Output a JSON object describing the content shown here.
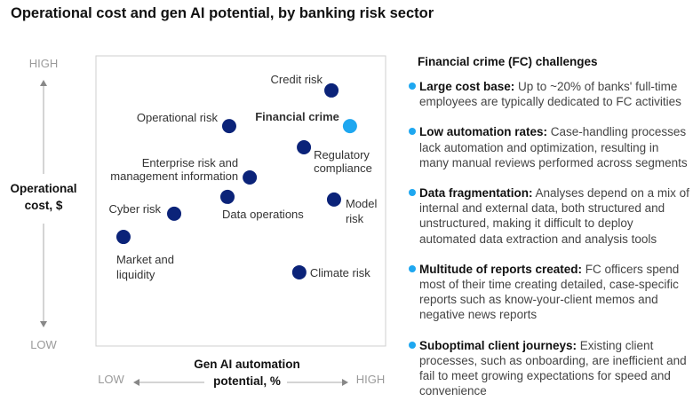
{
  "title": "Operational cost and gen AI potential, by banking risk sector",
  "chart_data": {
    "type": "scatter",
    "title": "Operational cost and gen AI potential, by banking risk sector",
    "xlabel": "Gen AI automation potential, %",
    "xlabel_lines": [
      "Gen AI automation",
      "potential, %"
    ],
    "ylabel": "Operational cost, $",
    "ylabel_lines": [
      "Operational",
      "cost, $"
    ],
    "x_low": "LOW",
    "x_high": "HIGH",
    "y_low": "LOW",
    "y_high": "HIGH",
    "xlim": [
      0,
      100
    ],
    "ylim": [
      0,
      100
    ],
    "colors": {
      "default": "#0b2379",
      "highlight": "#1ea7f0"
    },
    "points": [
      {
        "label": "Credit risk",
        "lines": [
          "Credit risk"
        ],
        "x": 81.3,
        "y": 88.1,
        "highlight": false
      },
      {
        "label": "Operational risk",
        "lines": [
          "Operational risk"
        ],
        "x": 46.0,
        "y": 75.8,
        "highlight": false
      },
      {
        "label": "Financial crime",
        "lines": [
          "Financial crime"
        ],
        "x": 87.7,
        "y": 75.8,
        "highlight": true
      },
      {
        "label": "Regulatory compliance",
        "lines": [
          "Regulatory",
          "compliance"
        ],
        "x": 71.8,
        "y": 68.5,
        "highlight": false
      },
      {
        "label": "Enterprise risk and management information",
        "lines": [
          "Enterprise risk and",
          "management information"
        ],
        "x": 53.1,
        "y": 58.1,
        "highlight": false
      },
      {
        "label": "Data operations",
        "lines": [
          "Data operations"
        ],
        "x": 45.4,
        "y": 51.4,
        "highlight": false
      },
      {
        "label": "Model risk",
        "lines": [
          "Model",
          "risk"
        ],
        "x": 82.2,
        "y": 50.5,
        "highlight": false
      },
      {
        "label": "Cyber risk",
        "lines": [
          "Cyber risk"
        ],
        "x": 27.0,
        "y": 45.6,
        "highlight": false
      },
      {
        "label": "Market and liquidity",
        "lines": [
          "Market and",
          "liquidity"
        ],
        "x": 9.5,
        "y": 37.6,
        "highlight": false
      },
      {
        "label": "Climate risk",
        "lines": [
          "Climate risk"
        ],
        "x": 70.2,
        "y": 25.4,
        "highlight": false
      }
    ]
  },
  "panel": {
    "title": "Financial crime (FC) challenges",
    "items": [
      {
        "head": "Large cost base:",
        "text": " Up to ~20% of banks' full-time employees are typically dedicated to FC activities"
      },
      {
        "head": "Low automation rates:",
        "text": " Case-handling processes lack automation and optimization, resulting in many manual reviews performed across segments"
      },
      {
        "head": "Data fragmentation:",
        "text": " Analyses depend on a mix of internal and external data, both structured and unstructured, making it difficult to deploy automated data extraction and analysis tools"
      },
      {
        "head": "Multitude of reports created:",
        "text": " FC officers spend most of their time creating detailed, case-specific reports such as know-your-client memos and negative news reports"
      },
      {
        "head": "Suboptimal client journeys:",
        "text": " Existing client processes, such as onboarding, are inefficient and fail to meet growing expectations for speed and convenience"
      }
    ]
  }
}
